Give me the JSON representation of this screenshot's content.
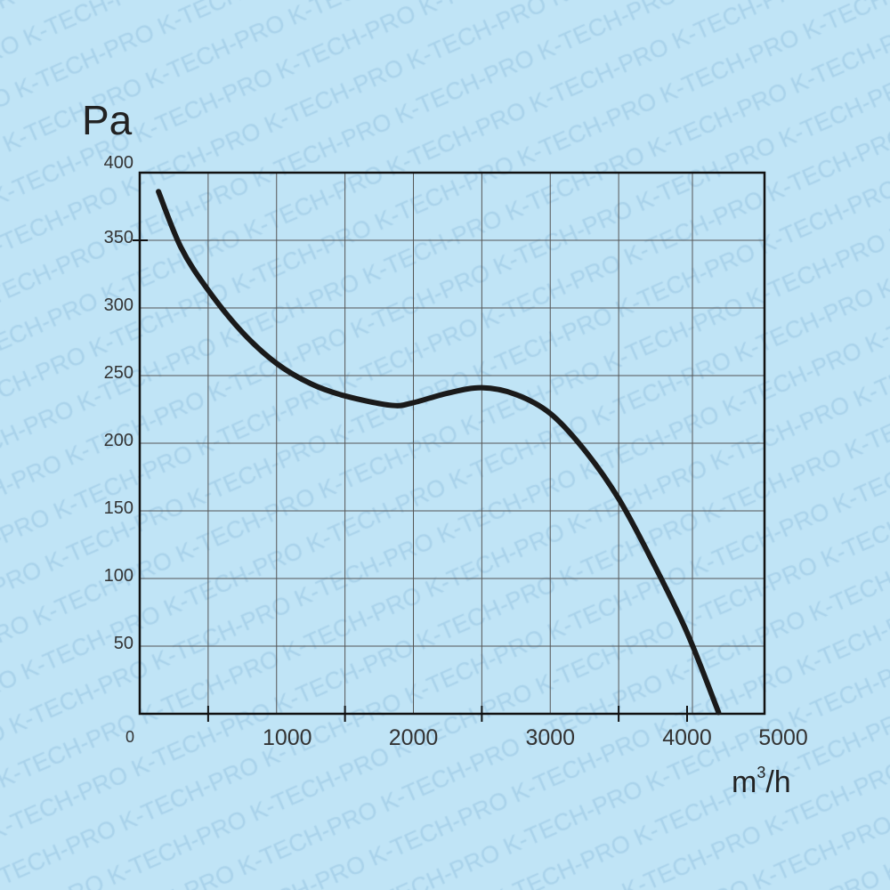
{
  "watermark": "K-TECH-PRO",
  "chart_data": {
    "type": "line",
    "title": "",
    "xlabel": "m³/h",
    "ylabel": "Pa",
    "xlim": [
      0,
      4565
    ],
    "ylim": [
      0,
      400
    ],
    "grid": true,
    "x_tick_labels": [
      "0",
      "1000",
      "2000",
      "3000",
      "4000",
      "5000"
    ],
    "y_tick_labels": [
      "50",
      "100",
      "150",
      "200",
      "250",
      "300",
      "350",
      "400"
    ],
    "series": [
      {
        "x": [
          137,
          300,
          494,
          750,
          1000,
          1250,
          1500,
          1840,
          2000,
          2250,
          2500,
          2750,
          3000,
          3250,
          3500,
          3750,
          4000,
          4230
        ],
        "y": [
          386,
          345,
          314,
          282,
          259,
          244,
          235,
          228,
          230,
          237,
          241,
          236,
          222,
          195,
          159,
          112,
          60,
          1
        ]
      }
    ]
  }
}
